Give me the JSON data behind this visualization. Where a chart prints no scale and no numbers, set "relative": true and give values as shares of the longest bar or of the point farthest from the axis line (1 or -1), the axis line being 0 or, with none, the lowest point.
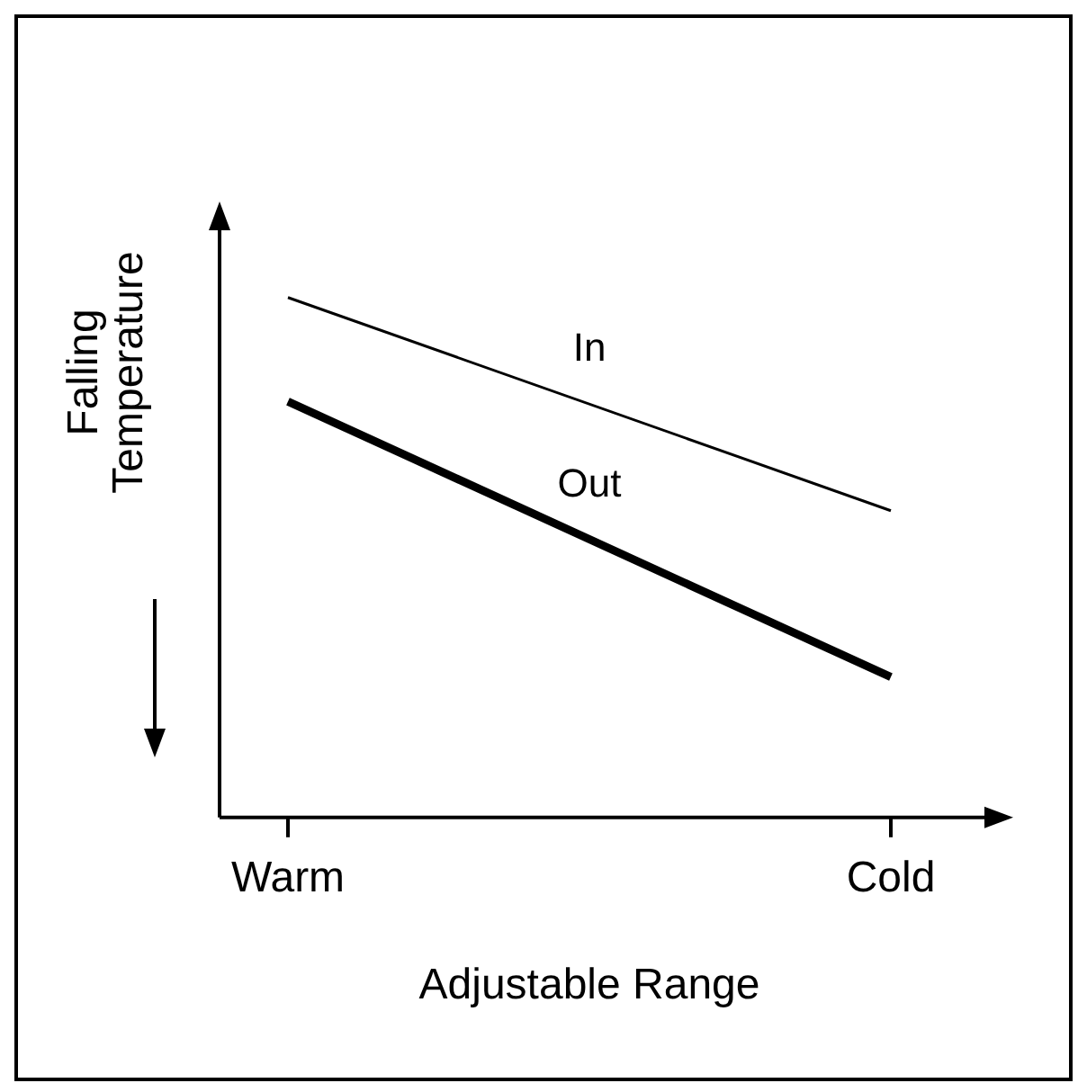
{
  "chart_data": {
    "type": "line",
    "relative": true,
    "xlabel": "Adjustable Range",
    "ylabel": "Falling Temperature",
    "categories": [
      "Warm",
      "Cold"
    ],
    "legend": false,
    "grid": false,
    "marker": "none",
    "line_style": "solid",
    "series": [
      {
        "name": "In",
        "color": "#000000",
        "values": [
          1,
          0.59
        ]
      },
      {
        "name": "Out",
        "color": "#000000",
        "values": [
          0.8,
          0.27
        ]
      }
    ]
  }
}
